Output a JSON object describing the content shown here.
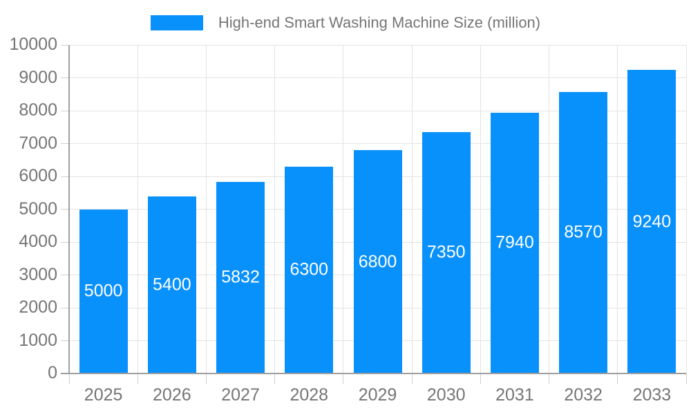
{
  "chart_data": {
    "type": "bar",
    "title": "High-end Smart Washing Machine Size (million)",
    "categories": [
      "2025",
      "2026",
      "2027",
      "2028",
      "2029",
      "2030",
      "2031",
      "2032",
      "2033"
    ],
    "values": [
      5000,
      5400,
      5832,
      6300,
      6800,
      7350,
      7940,
      8570,
      9240
    ],
    "xlabel": "",
    "ylabel": "",
    "ylim": [
      0,
      10000
    ],
    "ytick_step": 1000,
    "grid": true,
    "legend_position": "top-center",
    "value_label_position": "inside-center"
  },
  "colors": {
    "bar": "#0991FB",
    "grid": "#E3E3E3",
    "axis": "#9E9E9E",
    "tick_mark": "#CFCFCF",
    "text": "#757575",
    "value_label": "#FFFFFF",
    "background": "#FFFFFF"
  }
}
